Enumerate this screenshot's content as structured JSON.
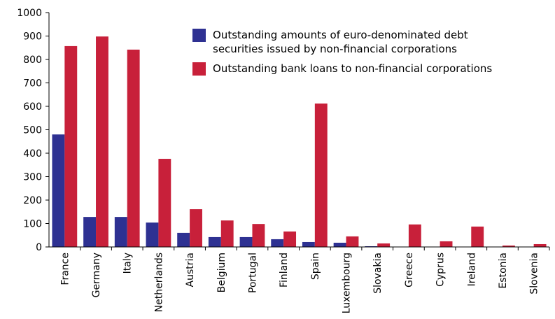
{
  "chart_data": {
    "type": "bar",
    "categories": [
      "France",
      "Germany",
      "Italy",
      "Netherlands",
      "Austria",
      "Belgium",
      "Portugal",
      "Finland",
      "Spain",
      "Luxembourg",
      "Slovakia",
      "Greece",
      "Cyprus",
      "Ireland",
      "Estonia",
      "Slovenia"
    ],
    "series": [
      {
        "name": "Outstanding amounts of euro-denominated debt securities issued by non-financial corporations",
        "color": "#2e3192",
        "values": [
          480,
          128,
          128,
          104,
          60,
          42,
          42,
          33,
          21,
          18,
          3,
          0,
          0,
          0,
          0,
          0
        ]
      },
      {
        "name": "Outstanding bank loans to non-financial corporations",
        "color": "#c8203a",
        "values": [
          857,
          898,
          842,
          376,
          161,
          113,
          98,
          66,
          612,
          45,
          15,
          96,
          24,
          87,
          6,
          12
        ]
      }
    ],
    "ylim": [
      0,
      1000
    ],
    "yticks": [
      0,
      100,
      200,
      300,
      400,
      500,
      600,
      700,
      800,
      900,
      1000
    ]
  }
}
